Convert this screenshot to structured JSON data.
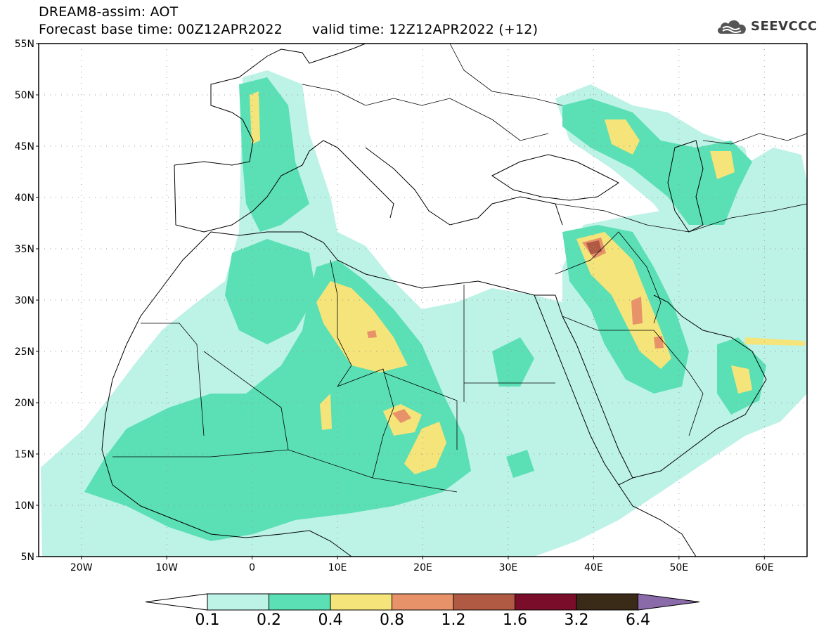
{
  "title": {
    "line1": "DREAM8-assim: AOT",
    "line2_base": "Forecast base time: 00Z12APR2022",
    "line2_valid": "valid time: 12Z12APR2022 (+12)"
  },
  "logo": {
    "text": "SEEVCCC",
    "icon": "cloud-logo-icon"
  },
  "map": {
    "lon_range": [
      -25,
      65
    ],
    "lat_range": [
      5,
      55
    ],
    "lat_ticks": [
      "55N",
      "50N",
      "45N",
      "40N",
      "35N",
      "30N",
      "25N",
      "20N",
      "15N",
      "10N",
      "5N"
    ],
    "lon_ticks": [
      "20W",
      "10W",
      "0",
      "10E",
      "20E",
      "30E",
      "40E",
      "50E",
      "60E"
    ],
    "grid": "dotted",
    "variable": "AOT"
  },
  "colorbar": {
    "labels": [
      "0.1",
      "0.2",
      "0.4",
      "0.8",
      "1.2",
      "1.6",
      "3.2",
      "6.4"
    ],
    "colors": [
      "#bdf2e6",
      "#5ae0b4",
      "#f5e47a",
      "#e8926a",
      "#b05a44",
      "#7a0e2a",
      "#3a2a18",
      "#8a6aa8"
    ],
    "under_color": "#ffffff"
  },
  "colors": {
    "level1": "#bdf2e6",
    "level2": "#5ae0b4",
    "level3": "#f5e47a",
    "level4": "#e8926a",
    "level5": "#b05a44"
  }
}
